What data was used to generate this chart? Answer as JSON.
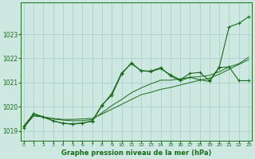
{
  "title": "Graphe pression niveau de la mer (hPa)",
  "background_color": "#cce8e0",
  "grid_color": "#aacccc",
  "line_color": "#1a6b1a",
  "xlim": [
    -0.3,
    23.3
  ],
  "ylim": [
    1018.6,
    1024.3
  ],
  "yticks": [
    1019,
    1020,
    1021,
    1022,
    1023
  ],
  "xticks": [
    0,
    1,
    2,
    3,
    4,
    5,
    6,
    7,
    8,
    9,
    10,
    11,
    12,
    13,
    14,
    15,
    16,
    17,
    18,
    19,
    20,
    21,
    22,
    23
  ],
  "series_smooth1": [
    1019.15,
    1019.62,
    1019.58,
    1019.52,
    1019.48,
    1019.48,
    1019.5,
    1019.52,
    1019.7,
    1019.9,
    1020.1,
    1020.3,
    1020.5,
    1020.6,
    1020.72,
    1020.8,
    1020.9,
    1021.0,
    1021.1,
    1021.18,
    1021.35,
    1021.55,
    1021.75,
    1021.95
  ],
  "series_smooth2": [
    1019.2,
    1019.65,
    1019.58,
    1019.5,
    1019.45,
    1019.42,
    1019.43,
    1019.47,
    1019.75,
    1020.05,
    1020.3,
    1020.58,
    1020.78,
    1020.95,
    1021.1,
    1021.1,
    1021.15,
    1021.22,
    1021.25,
    1021.3,
    1021.45,
    1021.65,
    1021.78,
    1022.05
  ],
  "series_jagged": [
    1019.2,
    1019.72,
    1019.58,
    1019.42,
    1019.32,
    1019.3,
    1019.33,
    1019.42,
    1020.08,
    1020.48,
    1021.35,
    1021.82,
    1021.48,
    1021.48,
    1021.62,
    1021.28,
    1021.08,
    1021.22,
    1021.12,
    1021.05,
    1021.62,
    1021.65,
    1021.08,
    1021.08
  ],
  "series_spike": [
    1019.12,
    1019.72,
    1019.58,
    1019.42,
    1019.32,
    1019.28,
    1019.33,
    1019.4,
    1020.05,
    1020.55,
    1021.4,
    1021.78,
    1021.5,
    1021.45,
    1021.58,
    1021.32,
    1021.12,
    1021.38,
    1021.42,
    1021.08,
    1021.65,
    1023.3,
    1023.45,
    1023.72
  ]
}
